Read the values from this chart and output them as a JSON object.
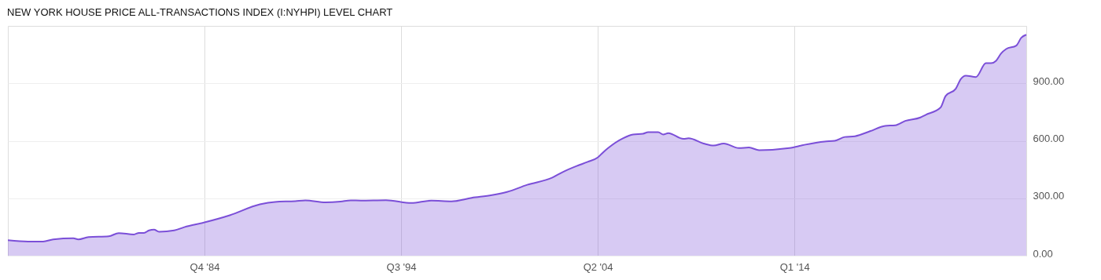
{
  "chart_data": {
    "type": "area",
    "title": "NEW YORK HOUSE PRICE ALL-TRANSACTIONS INDEX (I:NYHPI) LEVEL CHART",
    "x": [
      "1975-01",
      "1976-01",
      "1976-10",
      "1977-04",
      "1978-04",
      "1978-07",
      "1979-01",
      "1980-01",
      "1980-07",
      "1981-04",
      "1981-07",
      "1981-10",
      "1982-01",
      "1982-04",
      "1982-07",
      "1983-04",
      "1983-10",
      "1984-10",
      "1986-01",
      "1987-07",
      "1988-04",
      "1989-04",
      "1989-10",
      "1990-10",
      "1991-07",
      "1992-01",
      "1992-07",
      "1993-10",
      "1995-01",
      "1996-01",
      "1997-01",
      "1998-01",
      "1999-01",
      "1999-10",
      "2000-10",
      "2002-01",
      "2002-07",
      "2003-04",
      "2003-10",
      "2004-04",
      "2004-07",
      "2004-10",
      "2005-07",
      "2006-01",
      "2006-07",
      "2006-10",
      "2007-04",
      "2007-07",
      "2007-10",
      "2008-07",
      "2008-10",
      "2009-07",
      "2010-01",
      "2010-07",
      "2011-04",
      "2011-10",
      "2012-04",
      "2013-10",
      "2014-07",
      "2015-07",
      "2016-01",
      "2016-07",
      "2017-01",
      "2017-10",
      "2018-07",
      "2019-01",
      "2019-07",
      "2020-04",
      "2020-07",
      "2021-04",
      "2021-07",
      "2022-01",
      "2022-04",
      "2022-07",
      "2023-01",
      "2023-07",
      "2023-10",
      "2024-01",
      "2024-04",
      "2024-07",
      "2025-01",
      "2025-04",
      "2025-07"
    ],
    "series": [
      {
        "color": "#7b4fd8",
        "values": [
          81,
          74,
          74,
          85,
          91,
          85,
          97,
          101,
          118,
          111,
          119,
          119,
          132,
          136,
          125,
          132,
          149,
          174,
          211,
          268,
          281,
          285,
          289,
          279,
          283,
          289,
          288,
          290,
          275,
          288,
          284,
          302,
          316,
          333,
          370,
          408,
          436,
          470,
          490,
          513,
          538,
          561,
          613,
          633,
          637,
          645,
          645,
          633,
          640,
          610,
          613,
          586,
          575,
          586,
          562,
          565,
          551,
          562,
          579,
          596,
          600,
          620,
          624,
          650,
          678,
          681,
          704,
          722,
          735,
          774,
          834,
          872,
          922,
          940,
          933,
          1005,
          1005,
          1018,
          1056,
          1079,
          1097,
          1138,
          1154
        ]
      }
    ],
    "xlim": [
      "1975-01",
      "2025-07"
    ],
    "xticks": [
      {
        "value": "1984-10",
        "label": "Q4 '84"
      },
      {
        "value": "1994-07",
        "label": "Q3 '94"
      },
      {
        "value": "2004-04",
        "label": "Q2 '04"
      },
      {
        "value": "2014-01",
        "label": "Q1 '14"
      }
    ],
    "ylim": [
      0,
      1200
    ],
    "yticks": [
      {
        "value": 0,
        "label": "0.00"
      },
      {
        "value": 300,
        "label": "300.00"
      },
      {
        "value": 600,
        "label": "600.00"
      },
      {
        "value": 900,
        "label": "900.00"
      }
    ],
    "grid": true
  }
}
